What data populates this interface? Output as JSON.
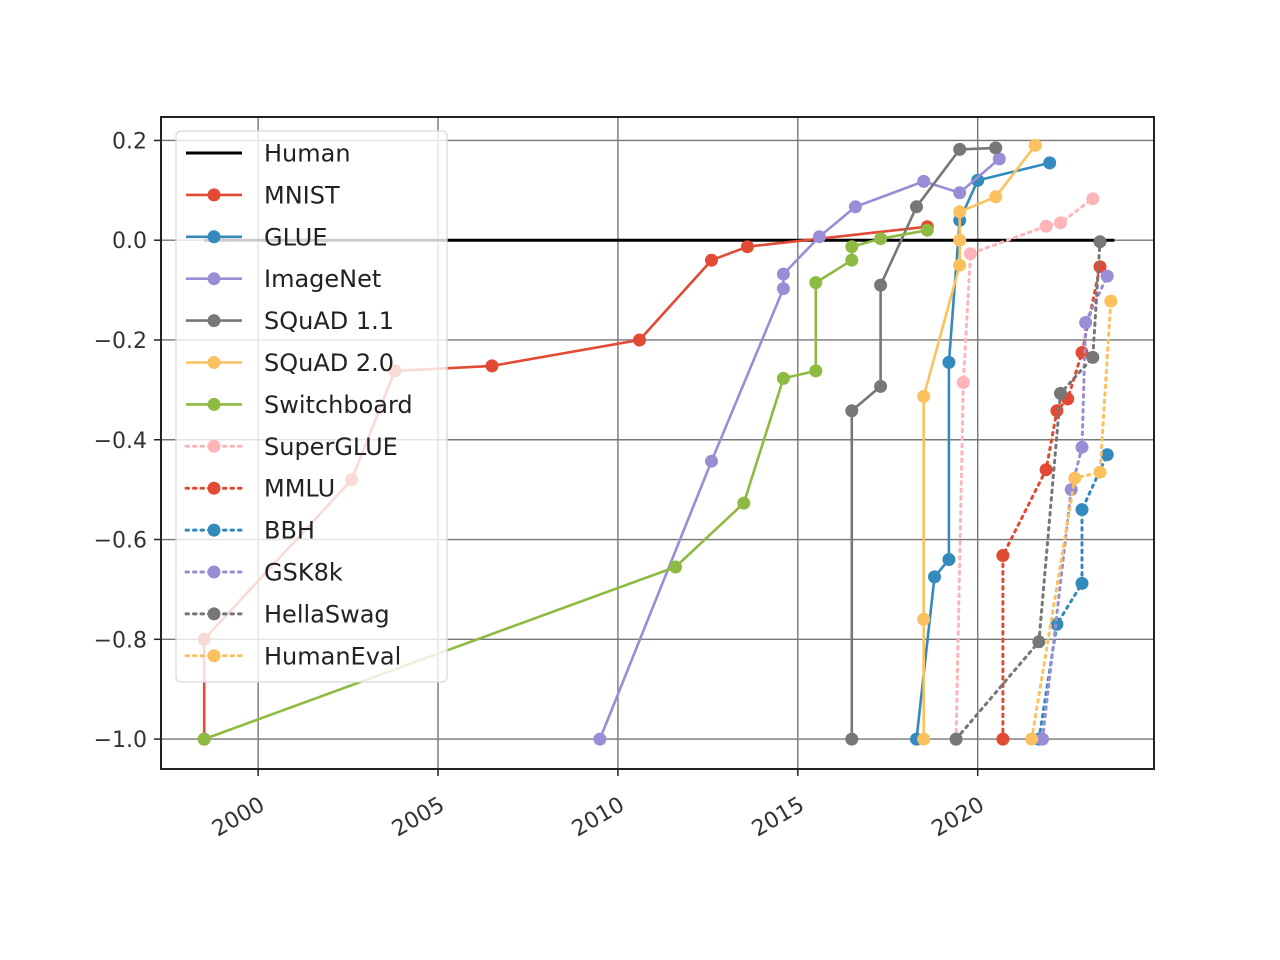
{
  "chart_data": {
    "type": "line",
    "title": "",
    "xlabel": "",
    "ylabel": "",
    "xlim": [
      1997.3,
      2024.9
    ],
    "ylim": [
      -1.06,
      0.247
    ],
    "grid": true,
    "legend_position": "upper-left",
    "x_ticks": [
      2000,
      2005,
      2010,
      2015,
      2020
    ],
    "x_tick_labels": [
      "2000",
      "2005",
      "2010",
      "2015",
      "2020"
    ],
    "y_ticks": [
      0.2,
      0.0,
      -0.2,
      -0.4,
      -0.6,
      -0.8,
      -1.0
    ],
    "y_tick_labels": [
      "0.2",
      "0.0",
      "−0.2",
      "−0.4",
      "−0.6",
      "−0.8",
      "−1.0"
    ],
    "series": [
      {
        "name": "Human",
        "color": "#000000",
        "style": "solid",
        "markers": false,
        "x": [
          1998.5,
          2023.8
        ],
        "y": [
          0.0,
          0.0
        ]
      },
      {
        "name": "MNIST",
        "color": "#E24A33",
        "style": "solid",
        "markers": true,
        "x": [
          1998.5,
          1998.5,
          2002.6,
          2003.8,
          2006.5,
          2010.6,
          2012.6,
          2013.6,
          2018.6
        ],
        "y": [
          -1.0,
          -0.8,
          -0.48,
          -0.262,
          -0.252,
          -0.2,
          -0.04,
          -0.013,
          0.027
        ]
      },
      {
        "name": "GLUE",
        "color": "#348ABD",
        "style": "solid",
        "markers": true,
        "x": [
          2018.3,
          2018.8,
          2019.2,
          2019.2,
          2019.5,
          2020.0,
          2022.0
        ],
        "y": [
          -1.0,
          -0.675,
          -0.64,
          -0.245,
          0.04,
          0.12,
          0.155
        ]
      },
      {
        "name": "ImageNet",
        "color": "#988ED5",
        "style": "solid",
        "markers": true,
        "x": [
          2009.5,
          2012.6,
          2014.6,
          2014.6,
          2015.6,
          2016.6,
          2018.5,
          2019.5,
          2020.6
        ],
        "y": [
          -1.0,
          -0.443,
          -0.097,
          -0.068,
          0.007,
          0.067,
          0.118,
          0.095,
          0.163
        ]
      },
      {
        "name": "SQuAD 1.1",
        "color": "#777777",
        "style": "solid",
        "markers": true,
        "x": [
          2016.5,
          2016.5,
          2017.3,
          2017.3,
          2018.3,
          2019.5,
          2020.5
        ],
        "y": [
          -1.0,
          -0.342,
          -0.293,
          -0.09,
          0.067,
          0.182,
          0.185
        ]
      },
      {
        "name": "SQuAD 2.0",
        "color": "#FBC15E",
        "style": "solid",
        "markers": true,
        "x": [
          2018.5,
          2018.5,
          2018.5,
          2019.5,
          2019.5,
          2019.5,
          2020.5,
          2021.6
        ],
        "y": [
          -1.0,
          -0.76,
          -0.313,
          -0.05,
          0.0,
          0.057,
          0.087,
          0.19
        ]
      },
      {
        "name": "Switchboard",
        "color": "#8EBA42",
        "style": "solid",
        "markers": true,
        "x": [
          1998.5,
          2011.6,
          2013.5,
          2014.6,
          2015.5,
          2015.5,
          2016.5,
          2016.5,
          2017.3,
          2018.6
        ],
        "y": [
          -1.0,
          -0.655,
          -0.527,
          -0.277,
          -0.262,
          -0.085,
          -0.04,
          -0.013,
          0.003,
          0.02
        ]
      },
      {
        "name": "SuperGLUE",
        "color": "#FFB5B8",
        "style": "dotted",
        "markers": true,
        "x": [
          2019.4,
          2019.6,
          2019.8,
          2021.9,
          2022.3,
          2023.2
        ],
        "y": [
          -1.0,
          -0.285,
          -0.027,
          0.028,
          0.035,
          0.083
        ]
      },
      {
        "name": "MMLU",
        "color": "#E24A33",
        "style": "dotted",
        "markers": true,
        "x": [
          2020.7,
          2020.7,
          2021.9,
          2022.2,
          2022.5,
          2022.9,
          2023.4
        ],
        "y": [
          -1.0,
          -0.632,
          -0.46,
          -0.342,
          -0.318,
          -0.225,
          -0.053
        ]
      },
      {
        "name": "BBH",
        "color": "#348ABD",
        "style": "dotted",
        "markers": true,
        "x": [
          2021.7,
          2022.2,
          2022.9,
          2022.9,
          2023.6
        ],
        "y": [
          -1.0,
          -0.77,
          -0.688,
          -0.54,
          -0.43
        ]
      },
      {
        "name": "GSK8k",
        "color": "#988ED5",
        "style": "dotted",
        "markers": true,
        "x": [
          2021.8,
          2022.6,
          2022.9,
          2023.0,
          2023.6
        ],
        "y": [
          -1.0,
          -0.5,
          -0.415,
          -0.165,
          -0.072
        ]
      },
      {
        "name": "HellaSwag",
        "color": "#777777",
        "style": "dotted",
        "markers": true,
        "x": [
          2019.4,
          2021.7,
          2022.3,
          2023.2,
          2023.4
        ],
        "y": [
          -1.0,
          -0.805,
          -0.307,
          -0.235,
          -0.003
        ]
      },
      {
        "name": "HumanEval",
        "color": "#FBC15E",
        "style": "dotted",
        "markers": true,
        "x": [
          2021.5,
          2022.7,
          2023.4,
          2023.7
        ],
        "y": [
          -1.0,
          -0.477,
          -0.465,
          -0.122
        ]
      }
    ]
  }
}
